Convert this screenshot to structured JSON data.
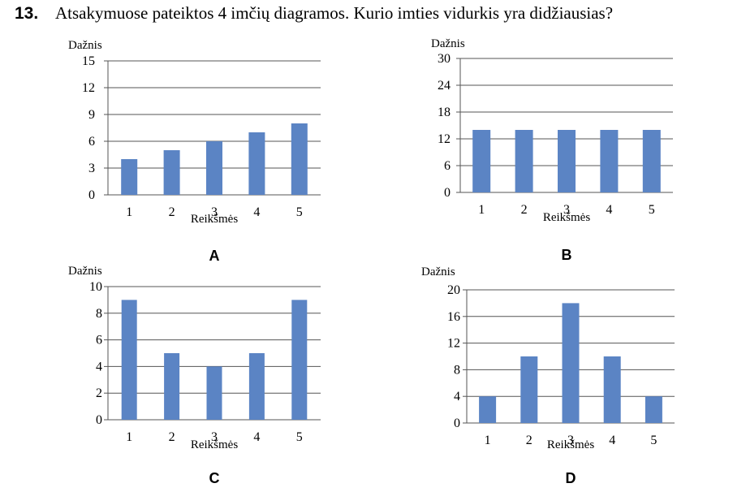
{
  "question": {
    "number": "13.",
    "text": "Atsakymuose pateiktos 4 imčių diagramos. Kurio imties vidurkis yra didžiausias?"
  },
  "colors": {
    "bar": "#5b84c4",
    "grid": "#555555"
  },
  "chart_data": [
    {
      "type": "bar",
      "letter": "A",
      "categories": [
        "1",
        "2",
        "3",
        "4",
        "5"
      ],
      "values": [
        4,
        5,
        6,
        7,
        8
      ],
      "ylabel": "Dažnis",
      "xlabel": "Reikšmės",
      "ylim": [
        0,
        15
      ],
      "yticks": [
        0,
        3,
        6,
        9,
        12,
        15
      ],
      "grid": true
    },
    {
      "type": "bar",
      "letter": "B",
      "categories": [
        "1",
        "2",
        "3",
        "4",
        "5"
      ],
      "values": [
        14,
        14,
        14,
        14,
        14
      ],
      "ylabel": "Dažnis",
      "xlabel": "Reikšmės",
      "ylim": [
        0,
        30
      ],
      "yticks": [
        0,
        6,
        12,
        18,
        24,
        30
      ],
      "grid": true
    },
    {
      "type": "bar",
      "letter": "C",
      "categories": [
        "1",
        "2",
        "3",
        "4",
        "5"
      ],
      "values": [
        9,
        5,
        4,
        5,
        9
      ],
      "ylabel": "Dažnis",
      "xlabel": "Reikšmės",
      "ylim": [
        0,
        10
      ],
      "yticks": [
        0,
        2,
        4,
        6,
        8,
        10
      ],
      "grid": true
    },
    {
      "type": "bar",
      "letter": "D",
      "categories": [
        "1",
        "2",
        "3",
        "4",
        "5"
      ],
      "values": [
        4,
        10,
        18,
        10,
        4
      ],
      "ylabel": "Dažnis",
      "xlabel": "Reikšmės",
      "ylim": [
        0,
        20
      ],
      "yticks": [
        0,
        4,
        8,
        12,
        16,
        20
      ],
      "grid": true
    }
  ]
}
